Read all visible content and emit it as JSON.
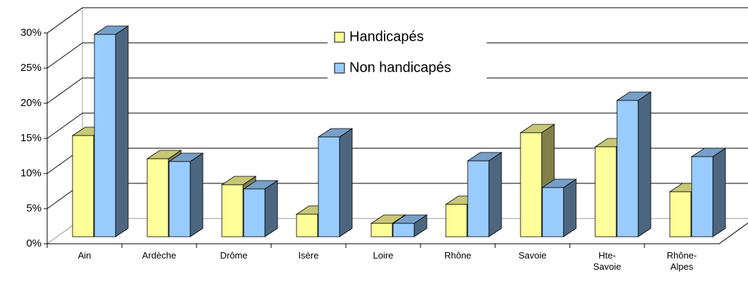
{
  "chart_data": {
    "type": "bar3d",
    "categories": [
      "Ain",
      "Ardèche",
      "Drôme",
      "Isère",
      "Loire",
      "Rhône",
      "Savoie",
      "Hte-Savoie",
      "Rhône-Alpes"
    ],
    "series": [
      {
        "name": "Handicapés",
        "color": "#ffff99",
        "values": [
          14.4,
          11.1,
          7.4,
          3.2,
          1.9,
          4.6,
          14.8,
          12.8,
          6.4
        ]
      },
      {
        "name": "Non handicapés",
        "color": "#99ccff",
        "values": [
          28.8,
          10.7,
          6.8,
          14.2,
          1.9,
          10.8,
          7.0,
          19.4,
          11.4
        ]
      }
    ],
    "ylim": [
      0,
      30
    ],
    "yticks": [
      {
        "value": 0,
        "label": "0%"
      },
      {
        "value": 5,
        "label": "5%"
      },
      {
        "value": 10,
        "label": "10%"
      },
      {
        "value": 15,
        "label": "15%"
      },
      {
        "value": 20,
        "label": "20%"
      },
      {
        "value": 25,
        "label": "25%"
      },
      {
        "value": 30,
        "label": "30%"
      }
    ],
    "grid": true
  }
}
